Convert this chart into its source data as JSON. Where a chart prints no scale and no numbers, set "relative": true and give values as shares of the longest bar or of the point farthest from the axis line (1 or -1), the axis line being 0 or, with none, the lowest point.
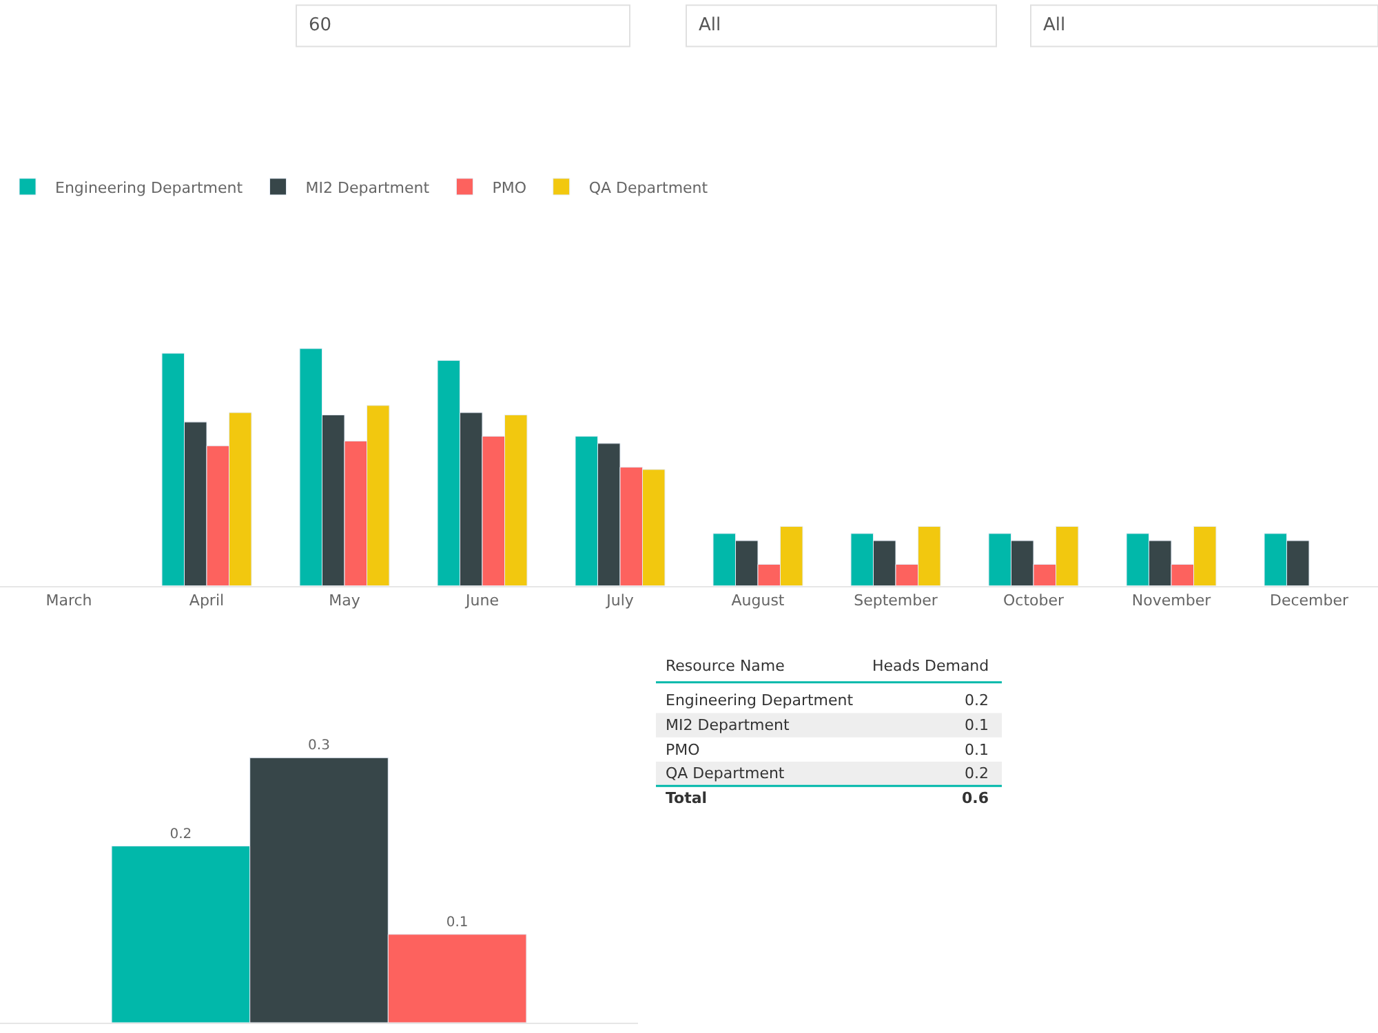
{
  "chart_data": [
    {
      "type": "bar",
      "relative": true,
      "legend": "top left",
      "categories": [
        "March",
        "April",
        "May",
        "June",
        "July",
        "August",
        "September",
        "October",
        "November",
        "December"
      ],
      "annotations": [
        "60",
        "All",
        "All"
      ],
      "series": [
        {
          "name": "Engineering Department",
          "color": "#01b8aa",
          "values": [
            null,
            0.98,
            1,
            0.95,
            0.63,
            0.22,
            0.22,
            0.22,
            0.22,
            0.22
          ]
        },
        {
          "name": "MI2 Department",
          "color": "#374649",
          "values": [
            null,
            0.69,
            0.72,
            0.73,
            0.6,
            0.19,
            0.19,
            0.19,
            0.19,
            0.19
          ]
        },
        {
          "name": "PMO",
          "color": "#fd625e",
          "values": [
            null,
            0.59,
            0.61,
            0.63,
            0.5,
            0.09,
            0.09,
            0.09,
            0.09,
            null
          ]
        },
        {
          "name": "QA Department",
          "color": "#f2c80f",
          "values": [
            null,
            0.73,
            0.76,
            0.72,
            0.49,
            0.25,
            0.25,
            0.25,
            0.25,
            null
          ]
        }
      ]
    },
    {
      "type": "bar",
      "data_labels": true,
      "categories": [
        null
      ],
      "series": [
        {
          "color": "#01b8aa",
          "values": [
            0.2
          ]
        },
        {
          "color": "#374649",
          "values": [
            0.3
          ]
        },
        {
          "color": "#fd625e",
          "values": [
            0.1
          ]
        }
      ]
    },
    {
      "type": "other",
      "annotations": [
        "Resource Name",
        "Heads Demand",
        "Engineering Department",
        "0.2",
        "MI2 Department",
        "0.1",
        "PMO",
        "0.1",
        "QA Department",
        "0.2",
        "Total",
        "0.6"
      ]
    }
  ]
}
